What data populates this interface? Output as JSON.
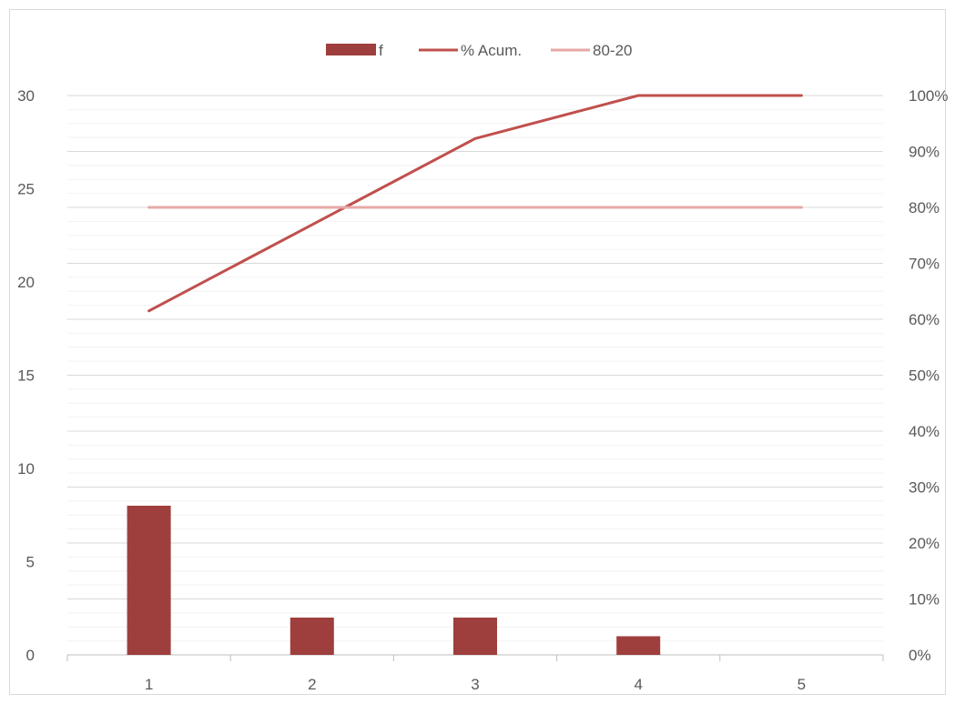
{
  "chart_data": {
    "type": "bar",
    "categories": [
      "1",
      "2",
      "3",
      "4",
      "5"
    ],
    "series": [
      {
        "name": "f",
        "type": "bar",
        "axis": "left",
        "values": [
          8,
          2,
          2,
          1,
          0
        ],
        "color": "#9E3F3D"
      },
      {
        "name": "% Acum.",
        "type": "line",
        "axis": "right",
        "values": [
          0.615,
          0.769,
          0.923,
          1.0,
          1.0
        ],
        "color": "#C0504D"
      },
      {
        "name": "80-20",
        "type": "line",
        "axis": "right",
        "values": [
          0.8,
          0.8,
          0.8,
          0.8,
          0.8
        ],
        "color": "#E6A8A6"
      }
    ],
    "y_left": {
      "min": 0,
      "max": 30,
      "ticks": [
        0,
        5,
        10,
        15,
        20,
        25,
        30
      ],
      "labels": [
        "0",
        "5",
        "10",
        "15",
        "20",
        "25",
        "30"
      ]
    },
    "y_right": {
      "min": 0,
      "max": 1,
      "ticks": [
        0,
        0.1,
        0.2,
        0.3,
        0.4,
        0.5,
        0.6,
        0.7,
        0.8,
        0.9,
        1.0
      ],
      "labels": [
        "0%",
        "10%",
        "20%",
        "30%",
        "40%",
        "50%",
        "60%",
        "70%",
        "80%",
        "90%",
        "100%"
      ]
    },
    "grid": true,
    "minor_grid": true,
    "legend_position": "top",
    "title": "",
    "xlabel": "",
    "ylabel": ""
  }
}
